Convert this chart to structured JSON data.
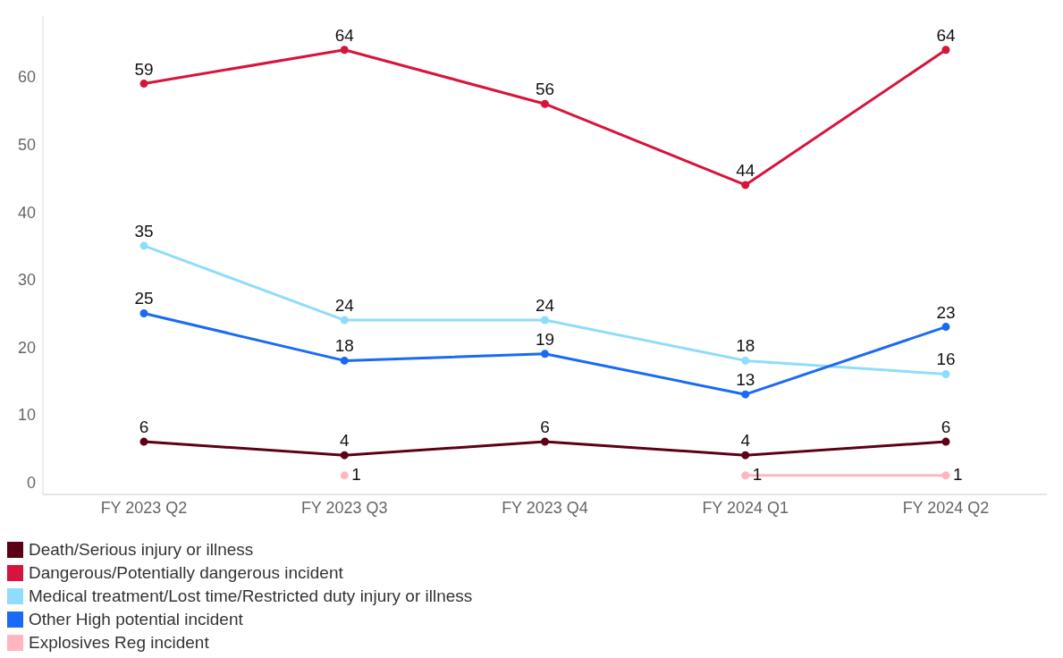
{
  "chart_data": {
    "type": "line",
    "categories": [
      "FY 2023 Q2",
      "FY 2023 Q3",
      "FY 2023 Q4",
      "FY 2024 Q1",
      "FY 2024 Q2"
    ],
    "series": [
      {
        "name": "Death/Serious injury or illness",
        "color": "#5c0016",
        "values": [
          6,
          4,
          6,
          4,
          6
        ]
      },
      {
        "name": "Dangerous/Potentially dangerous incident",
        "color": "#d7143c",
        "values": [
          59,
          64,
          56,
          44,
          64
        ]
      },
      {
        "name": "Medical treatment/Lost time/Restricted duty injury or illness",
        "color": "#8fdcfb",
        "values": [
          35,
          24,
          24,
          18,
          16
        ]
      },
      {
        "name": "Other High potential incident",
        "color": "#1a6af5",
        "values": [
          25,
          18,
          19,
          13,
          23
        ]
      },
      {
        "name": "Explosives Reg incident",
        "color": "#ffb6c1",
        "values": [
          null,
          1,
          null,
          1,
          1
        ]
      }
    ],
    "ylim": [
      -1.8,
      69
    ],
    "yticks": [
      0,
      10,
      20,
      30,
      40,
      50,
      60
    ],
    "legend": "bottom",
    "marker": "circle",
    "line_style": "solid",
    "data_labels": true
  }
}
